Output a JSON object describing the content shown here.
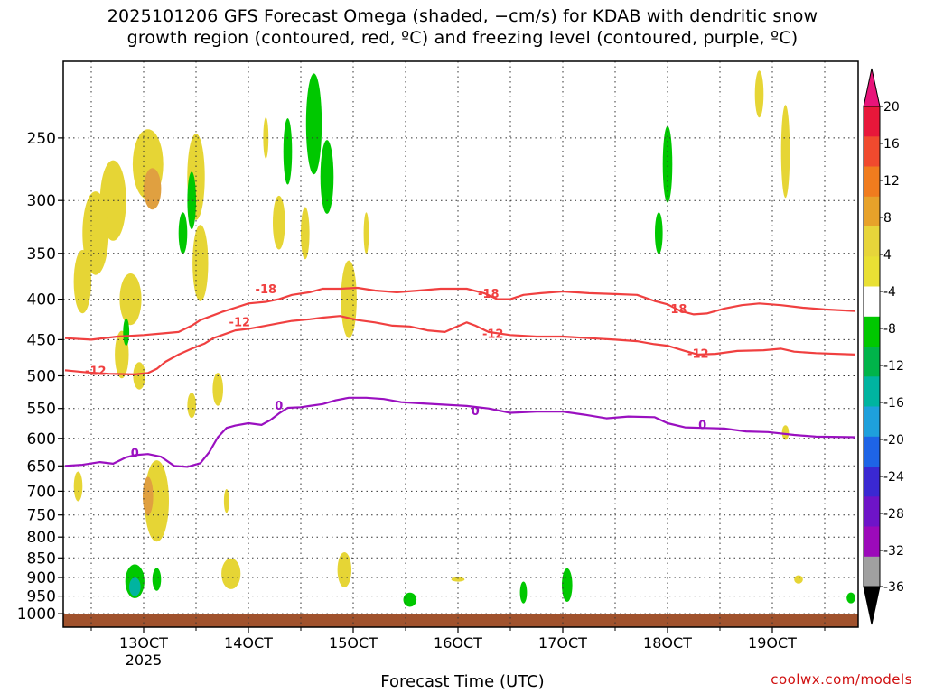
{
  "title": {
    "line1": "2025101206 GFS Forecast Omega (shaded, −cm/s) for KDAB with dendritic snow",
    "line2": "growth region (contoured, red, ºC) and freezing level (contoured, purple, ºC)"
  },
  "credit": "coolwx.com/models",
  "chart_data": {
    "type": "heatmap",
    "title": "2025101206 GFS Forecast Omega (shaded, −cm/s) for KDAB with dendritic snow growth region (contoured, red, ºC) and freezing level (contoured, purple, ºC)",
    "xlabel": "Forecast Time (UTC)",
    "ylabel": "",
    "x_ticks": [
      {
        "t": 0,
        "label": "13OCT",
        "sub": "2025"
      },
      {
        "t": 24,
        "label": "14OCT",
        "sub": ""
      },
      {
        "t": 48,
        "label": "15OCT",
        "sub": ""
      },
      {
        "t": 72,
        "label": "16OCT",
        "sub": ""
      },
      {
        "t": 96,
        "label": "17OCT",
        "sub": ""
      },
      {
        "t": 120,
        "label": "18OCT",
        "sub": ""
      },
      {
        "t": 144,
        "label": "19OCT",
        "sub": ""
      }
    ],
    "xlim": [
      -18,
      163
    ],
    "y_levels": [
      250,
      300,
      350,
      400,
      450,
      500,
      550,
      600,
      650,
      700,
      750,
      800,
      850,
      900,
      950,
      1000
    ],
    "ylim": [
      200,
      1040
    ],
    "y_scale": "log-pressure",
    "grid": true,
    "colorbar": {
      "labels": [
        "20",
        "16",
        "12",
        "8",
        "4",
        "-4",
        "-8",
        "-12",
        "-16",
        "-20",
        "-24",
        "-28",
        "-32",
        "-36"
      ],
      "colors_top_down": [
        "#e8173a",
        "#f04a2e",
        "#f07c1e",
        "#e7a22a",
        "#e7d53a",
        "#e9e034",
        "#ffffff",
        "#00c800",
        "#00b44a",
        "#00b4a0",
        "#1ea0dc",
        "#1e64e6",
        "#3a28d2",
        "#6e14c8",
        "#9c0aba",
        "#a0a0a0"
      ],
      "top_arrow_color": "#e8147a",
      "bottom_arrow_color": "#000000"
    },
    "series": [
      {
        "name": "-18",
        "color": "#f04040",
        "points": [
          [
            -18,
            448
          ],
          [
            -12,
            450
          ],
          [
            -6,
            446
          ],
          [
            0,
            444
          ],
          [
            4,
            442
          ],
          [
            8,
            440
          ],
          [
            11,
            432
          ],
          [
            13,
            425
          ],
          [
            16,
            419
          ],
          [
            18,
            415
          ],
          [
            21,
            410
          ],
          [
            24,
            405
          ],
          [
            28,
            403
          ],
          [
            31,
            400
          ],
          [
            34,
            395
          ],
          [
            38,
            392
          ],
          [
            41,
            388
          ],
          [
            45,
            388
          ],
          [
            49,
            387
          ],
          [
            53,
            390
          ],
          [
            58,
            392
          ],
          [
            63,
            390
          ],
          [
            68,
            388
          ],
          [
            74,
            388
          ],
          [
            78,
            393
          ],
          [
            81,
            400
          ],
          [
            84,
            400
          ],
          [
            87,
            395
          ],
          [
            91,
            393
          ],
          [
            96,
            391
          ],
          [
            102,
            393
          ],
          [
            108,
            394
          ],
          [
            113,
            395
          ],
          [
            117,
            402
          ],
          [
            120,
            406
          ],
          [
            123,
            414
          ],
          [
            126,
            418
          ],
          [
            129,
            417
          ],
          [
            133,
            411
          ],
          [
            137,
            407
          ],
          [
            141,
            405
          ],
          [
            146,
            407
          ],
          [
            151,
            410
          ],
          [
            156,
            412
          ],
          [
            163,
            414
          ]
        ],
        "labels": [
          {
            "x": 28,
            "p": 388
          },
          {
            "x": 79,
            "p": 393
          },
          {
            "x": 122,
            "p": 411
          }
        ]
      },
      {
        "name": "-12",
        "color": "#f04040",
        "points": [
          [
            -18,
            492
          ],
          [
            -13,
            495
          ],
          [
            -8,
            497
          ],
          [
            -2,
            498
          ],
          [
            1,
            496
          ],
          [
            3,
            490
          ],
          [
            5,
            480
          ],
          [
            8,
            470
          ],
          [
            11,
            462
          ],
          [
            14,
            455
          ],
          [
            16,
            448
          ],
          [
            19,
            442
          ],
          [
            21,
            438
          ],
          [
            24,
            436
          ],
          [
            28,
            432
          ],
          [
            31,
            429
          ],
          [
            34,
            426
          ],
          [
            38,
            424
          ],
          [
            41,
            422
          ],
          [
            45,
            420
          ],
          [
            49,
            425
          ],
          [
            53,
            428
          ],
          [
            57,
            432
          ],
          [
            61,
            433
          ],
          [
            65,
            438
          ],
          [
            69,
            440
          ],
          [
            71,
            435
          ],
          [
            74,
            428
          ],
          [
            76,
            432
          ],
          [
            79,
            440
          ],
          [
            84,
            444
          ],
          [
            90,
            446
          ],
          [
            96,
            446
          ],
          [
            102,
            448
          ],
          [
            108,
            450
          ],
          [
            113,
            452
          ],
          [
            117,
            456
          ],
          [
            120,
            458
          ],
          [
            124,
            465
          ],
          [
            127,
            470
          ],
          [
            131,
            469
          ],
          [
            136,
            465
          ],
          [
            142,
            464
          ],
          [
            146,
            462
          ],
          [
            149,
            466
          ],
          [
            154,
            468
          ],
          [
            163,
            470
          ]
        ],
        "labels": [
          {
            "x": 22,
            "p": 427
          },
          {
            "x": 80,
            "p": 442
          },
          {
            "x": 127,
            "p": 468
          },
          {
            "x": -11,
            "p": 492
          }
        ]
      },
      {
        "name": "0",
        "color": "#9a10c0",
        "points": [
          [
            -18,
            650
          ],
          [
            -14,
            648
          ],
          [
            -10,
            643
          ],
          [
            -7,
            646
          ],
          [
            -4,
            634
          ],
          [
            -2,
            630
          ],
          [
            1,
            628
          ],
          [
            4,
            633
          ],
          [
            7,
            650
          ],
          [
            10,
            652
          ],
          [
            13,
            645
          ],
          [
            15,
            625
          ],
          [
            17,
            598
          ],
          [
            19,
            582
          ],
          [
            21,
            578
          ],
          [
            24,
            574
          ],
          [
            27,
            577
          ],
          [
            29,
            569
          ],
          [
            31,
            558
          ],
          [
            33,
            549
          ],
          [
            36,
            548
          ],
          [
            38,
            546
          ],
          [
            41,
            543
          ],
          [
            44,
            537
          ],
          [
            47,
            533
          ],
          [
            51,
            533
          ],
          [
            55,
            535
          ],
          [
            59,
            540
          ],
          [
            64,
            542
          ],
          [
            69,
            544
          ],
          [
            74,
            546
          ],
          [
            79,
            550
          ],
          [
            84,
            557
          ],
          [
            90,
            555
          ],
          [
            96,
            555
          ],
          [
            101,
            560
          ],
          [
            106,
            566
          ],
          [
            111,
            563
          ],
          [
            117,
            564
          ],
          [
            120,
            574
          ],
          [
            124,
            581
          ],
          [
            128,
            582
          ],
          [
            133,
            583
          ],
          [
            138,
            588
          ],
          [
            143,
            589
          ],
          [
            149,
            594
          ],
          [
            154,
            597
          ],
          [
            163,
            598
          ]
        ],
        "labels": [
          {
            "x": -2,
            "p": 625
          },
          {
            "x": 31,
            "p": 545
          },
          {
            "x": 76,
            "p": 553
          },
          {
            "x": 128,
            "p": 576
          }
        ]
      }
    ],
    "omega_blobs": [
      {
        "x": 1,
        "p": 270,
        "wx": 3.5,
        "hp": 55,
        "c": "#e6d535"
      },
      {
        "x": 2,
        "p": 290,
        "wx": 2.0,
        "hp": 35,
        "c": "#e0a040"
      },
      {
        "x": -7,
        "p": 300,
        "wx": 3.0,
        "hp": 70,
        "c": "#e6d535"
      },
      {
        "x": -11,
        "p": 330,
        "wx": 3.0,
        "hp": 80,
        "c": "#e6d535"
      },
      {
        "x": -14,
        "p": 380,
        "wx": 2.0,
        "hp": 70,
        "c": "#e6d535"
      },
      {
        "x": -3,
        "p": 400,
        "wx": 2.5,
        "hp": 60,
        "c": "#e6d535"
      },
      {
        "x": -5,
        "p": 470,
        "wx": 1.6,
        "hp": 65,
        "c": "#e6d535"
      },
      {
        "x": -1,
        "p": 500,
        "wx": 1.4,
        "hp": 40,
        "c": "#e6d535"
      },
      {
        "x": 12,
        "p": 280,
        "wx": 2.0,
        "hp": 70,
        "c": "#e6d535"
      },
      {
        "x": 13,
        "p": 360,
        "wx": 1.8,
        "hp": 80,
        "c": "#e6d535"
      },
      {
        "x": 9,
        "p": 330,
        "wx": 1.0,
        "hp": 40,
        "c": "#00c800"
      },
      {
        "x": 11,
        "p": 300,
        "wx": 1.0,
        "hp": 50,
        "c": "#00c800"
      },
      {
        "x": 3,
        "p": 720,
        "wx": 2.8,
        "hp": 170,
        "c": "#e6d535"
      },
      {
        "x": 1,
        "p": 710,
        "wx": 1.2,
        "hp": 80,
        "c": "#e0a040"
      },
      {
        "x": -15,
        "p": 690,
        "wx": 1.0,
        "hp": 60,
        "c": "#e6d535"
      },
      {
        "x": -4,
        "p": 440,
        "wx": 0.7,
        "hp": 35,
        "c": "#00c800"
      },
      {
        "x": -2,
        "p": 910,
        "wx": 2.2,
        "hp": 90,
        "c": "#00c800"
      },
      {
        "x": -2,
        "p": 925,
        "wx": 1.3,
        "hp": 50,
        "c": "#00b4a0"
      },
      {
        "x": 3,
        "p": 905,
        "wx": 1.0,
        "hp": 60,
        "c": "#00c800"
      },
      {
        "x": 20,
        "p": 890,
        "wx": 2.2,
        "hp": 80,
        "c": "#e6d535"
      },
      {
        "x": 17,
        "p": 520,
        "wx": 1.2,
        "hp": 50,
        "c": "#e6d535"
      },
      {
        "x": 11,
        "p": 545,
        "wx": 1.0,
        "hp": 40,
        "c": "#e6d535"
      },
      {
        "x": 19,
        "p": 720,
        "wx": 0.6,
        "hp": 50,
        "c": "#e6d535"
      },
      {
        "x": 31,
        "p": 320,
        "wx": 1.4,
        "hp": 50,
        "c": "#e6d535"
      },
      {
        "x": 33,
        "p": 260,
        "wx": 1.0,
        "hp": 50,
        "c": "#00c800"
      },
      {
        "x": 39,
        "p": 240,
        "wx": 1.8,
        "hp": 70,
        "c": "#00c800"
      },
      {
        "x": 42,
        "p": 280,
        "wx": 1.5,
        "hp": 60,
        "c": "#00c800"
      },
      {
        "x": 37,
        "p": 330,
        "wx": 1.0,
        "hp": 50,
        "c": "#e6d535"
      },
      {
        "x": 47,
        "p": 400,
        "wx": 1.8,
        "hp": 90,
        "c": "#e6d535"
      },
      {
        "x": 46,
        "p": 880,
        "wx": 1.6,
        "hp": 90,
        "c": "#e6d535"
      },
      {
        "x": 28,
        "p": 250,
        "wx": 0.6,
        "hp": 30,
        "c": "#e6d535"
      },
      {
        "x": 61,
        "p": 960,
        "wx": 1.5,
        "hp": 40,
        "c": "#00c800"
      },
      {
        "x": 51,
        "p": 330,
        "wx": 0.6,
        "hp": 40,
        "c": "#e6d535"
      },
      {
        "x": 87,
        "p": 940,
        "wx": 0.8,
        "hp": 60,
        "c": "#00c800"
      },
      {
        "x": 97,
        "p": 920,
        "wx": 1.2,
        "hp": 90,
        "c": "#00c800"
      },
      {
        "x": 120,
        "p": 270,
        "wx": 1.1,
        "hp": 60,
        "c": "#00c800"
      },
      {
        "x": 118,
        "p": 330,
        "wx": 0.9,
        "hp": 40,
        "c": "#00c800"
      },
      {
        "x": 147,
        "p": 260,
        "wx": 1.0,
        "hp": 70,
        "c": "#e6d535"
      },
      {
        "x": 141,
        "p": 220,
        "wx": 1.0,
        "hp": 30,
        "c": "#e6d535"
      },
      {
        "x": 147,
        "p": 590,
        "wx": 0.8,
        "hp": 25,
        "c": "#e6d535"
      },
      {
        "x": 72,
        "p": 905,
        "wx": 1.5,
        "hp": 12,
        "c": "#e6d535"
      },
      {
        "x": 150,
        "p": 905,
        "wx": 1.0,
        "hp": 22,
        "c": "#e6d535"
      },
      {
        "x": 162,
        "p": 955,
        "wx": 1.0,
        "hp": 30,
        "c": "#00c800"
      }
    ]
  }
}
